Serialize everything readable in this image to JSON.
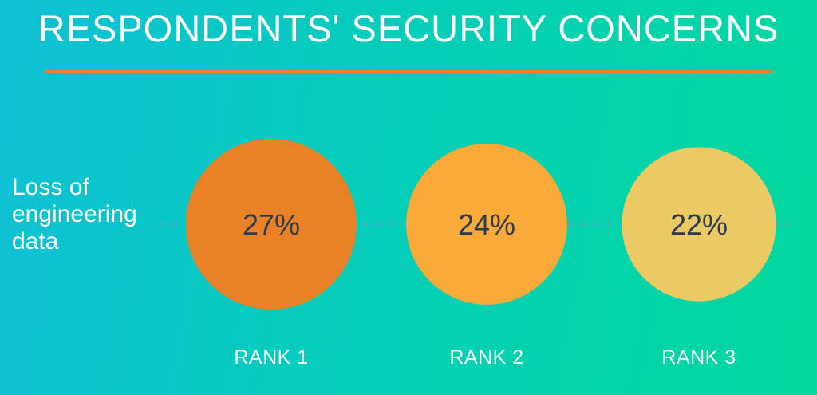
{
  "chart_data": {
    "type": "bubble",
    "title": "RESPONDENTS' SECURITY CONCERNS",
    "row_label": "Loss of engineering data",
    "row_label_lines": [
      "Loss of",
      "engineering",
      "data"
    ],
    "categories": [
      "RANK 1",
      "RANK 2",
      "RANK 3"
    ],
    "values": [
      27,
      24,
      22
    ],
    "value_labels": [
      "27%",
      "24%",
      "22%"
    ],
    "unit": "%",
    "colors": [
      "#e98226",
      "#f9aa38",
      "#ebc965"
    ]
  }
}
